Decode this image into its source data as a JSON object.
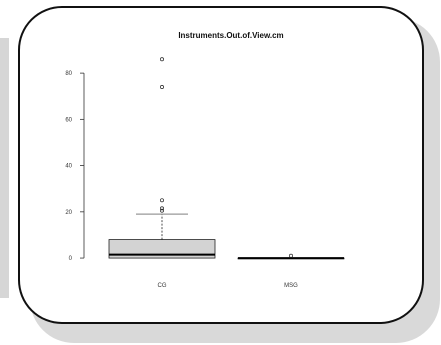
{
  "chart_data": {
    "type": "boxplot",
    "title": "Instruments.Out.of.View.cm",
    "xlabel": "",
    "ylabel": "",
    "ylim": [
      -3,
      90
    ],
    "y_ticks": [
      0,
      20,
      40,
      60,
      80
    ],
    "categories": [
      "CG",
      "MSG"
    ],
    "boxes": [
      {
        "category": "CG",
        "whisker_low": 0,
        "q1": 0,
        "median": 1.5,
        "q3": 8,
        "whisker_high": 19,
        "outliers": [
          86,
          74,
          25,
          21.5,
          20.5
        ],
        "fill": "#d3d3d3"
      },
      {
        "category": "MSG",
        "whisker_low": 0,
        "q1": 0,
        "median": 0,
        "q3": 0,
        "whisker_high": 0,
        "outliers": [
          1
        ],
        "fill": "#d3d3d3"
      }
    ]
  }
}
